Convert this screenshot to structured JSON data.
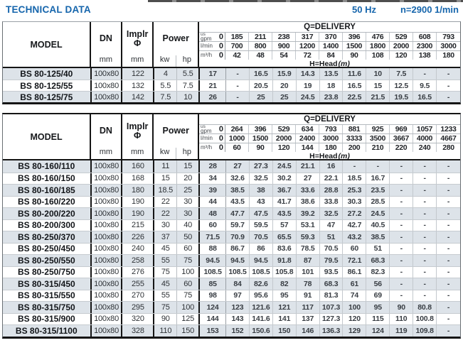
{
  "header": {
    "title": "TECHNICAL DATA",
    "frequency": "50 Hz",
    "speed": "n=2900 1/min"
  },
  "labels": {
    "model": "MODEL",
    "dn": "DN",
    "implr": "Implr",
    "phi": "Φ",
    "power": "Power",
    "mm": "mm",
    "kw": "kw",
    "hp": "hp",
    "q_delivery": "Q=DELIVERY",
    "head_label": "H=Head",
    "head_unit": "(m)",
    "unit_us": "us",
    "unit_gpm": "gpm",
    "unit_lmin": "l/min",
    "unit_m3h": "m³/h"
  },
  "colors": {
    "accent_blue": "#1565ac",
    "row_stripe": "#dde3e9"
  },
  "tables": [
    {
      "q_delivery": {
        "rows": [
          {
            "unit_top": "us",
            "unit": "gpm",
            "zero": "0",
            "values": [
              "185",
              "211",
              "238",
              "317",
              "370",
              "396",
              "476",
              "529",
              "608",
              "793"
            ]
          },
          {
            "unit": "l/min",
            "zero": "0",
            "values": [
              "700",
              "800",
              "900",
              "1200",
              "1400",
              "1500",
              "1800",
              "2000",
              "2300",
              "3000"
            ]
          },
          {
            "unit": "m³/h",
            "zero": "0",
            "values": [
              "42",
              "48",
              "54",
              "72",
              "84",
              "90",
              "108",
              "120",
              "138",
              "180"
            ]
          }
        ]
      },
      "rows": [
        {
          "model": "BS 80-125/40",
          "dn": "100x80",
          "implr": "122",
          "kw": "4",
          "hp": "5.5",
          "head": [
            "17",
            "-",
            "16.5",
            "15.9",
            "14.3",
            "13.5",
            "11.6",
            "10",
            "7.5",
            "-",
            "-"
          ]
        },
        {
          "model": "BS 80-125/55",
          "dn": "100x80",
          "implr": "132",
          "kw": "5.5",
          "hp": "7.5",
          "head": [
            "21",
            "-",
            "20.5",
            "20",
            "19",
            "18",
            "16.5",
            "15",
            "12.5",
            "9.5",
            "-"
          ]
        },
        {
          "model": "BS 80-125/75",
          "dn": "100x80",
          "implr": "142",
          "kw": "7.5",
          "hp": "10",
          "head": [
            "26",
            "-",
            "25",
            "25",
            "24.5",
            "23.8",
            "22.5",
            "21.5",
            "19.5",
            "16.5",
            "-"
          ]
        }
      ]
    },
    {
      "q_delivery": {
        "rows": [
          {
            "unit_top": "us",
            "unit": "gpm",
            "zero": "0",
            "values": [
              "264",
              "396",
              "529",
              "634",
              "793",
              "881",
              "925",
              "969",
              "1057",
              "1233"
            ]
          },
          {
            "unit": "l/min",
            "zero": "0",
            "values": [
              "1000",
              "1500",
              "2000",
              "2400",
              "3000",
              "3333",
              "3500",
              "3667",
              "4000",
              "4667"
            ]
          },
          {
            "unit": "m³/h",
            "zero": "0",
            "values": [
              "60",
              "90",
              "120",
              "144",
              "180",
              "200",
              "210",
              "220",
              "240",
              "280"
            ]
          }
        ]
      },
      "rows": [
        {
          "model": "BS 80-160/110",
          "dn": "100x80",
          "implr": "160",
          "kw": "11",
          "hp": "15",
          "head": [
            "28",
            "27",
            "27.3",
            "24.5",
            "21.1",
            "16",
            "-",
            "-",
            "-",
            "-",
            "-"
          ]
        },
        {
          "model": "BS 80-160/150",
          "dn": "100x80",
          "implr": "168",
          "kw": "15",
          "hp": "20",
          "head": [
            "34",
            "32.6",
            "32.5",
            "30.2",
            "27",
            "22.1",
            "18.5",
            "16.7",
            "-",
            "-",
            "-"
          ]
        },
        {
          "model": "BS 80-160/185",
          "dn": "100x80",
          "implr": "180",
          "kw": "18.5",
          "hp": "25",
          "head": [
            "39",
            "38.5",
            "38",
            "36.7",
            "33.6",
            "28.8",
            "25.3",
            "23.5",
            "-",
            "-",
            "-"
          ]
        },
        {
          "model": "BS 80-160/220",
          "dn": "100x80",
          "implr": "190",
          "kw": "22",
          "hp": "30",
          "head": [
            "44",
            "43.5",
            "43",
            "41.7",
            "38.6",
            "33.8",
            "30.3",
            "28.5",
            "-",
            "-",
            "-"
          ]
        },
        {
          "model": "BS 80-200/220",
          "dn": "100x80",
          "implr": "190",
          "kw": "22",
          "hp": "30",
          "head": [
            "48",
            "47.7",
            "47.5",
            "43.5",
            "39.2",
            "32.5",
            "27.2",
            "24.5",
            "-",
            "-",
            "-"
          ]
        },
        {
          "model": "BS 80-200/300",
          "dn": "100x80",
          "implr": "215",
          "kw": "30",
          "hp": "40",
          "head": [
            "60",
            "59.7",
            "59.5",
            "57",
            "53.1",
            "47",
            "42.7",
            "40.5",
            "-",
            "-",
            "-"
          ]
        },
        {
          "model": "BS 80-250/370",
          "dn": "100x80",
          "implr": "226",
          "kw": "37",
          "hp": "50",
          "head": [
            "71.5",
            "70.9",
            "70.5",
            "65.5",
            "59.3",
            "51",
            "43.2",
            "38.5",
            "-",
            "-",
            "-"
          ]
        },
        {
          "model": "BS 80-250/450",
          "dn": "100x80",
          "implr": "240",
          "kw": "45",
          "hp": "60",
          "head": [
            "88",
            "86.7",
            "86",
            "83.6",
            "78.5",
            "70.5",
            "60",
            "51",
            "-",
            "-",
            "-"
          ]
        },
        {
          "model": "BS 80-250/550",
          "dn": "100x80",
          "implr": "258",
          "kw": "55",
          "hp": "75",
          "head": [
            "94.5",
            "94.5",
            "94.5",
            "91.8",
            "87",
            "79.5",
            "72.1",
            "68.3",
            "-",
            "-",
            "-"
          ]
        },
        {
          "model": "BS 80-250/750",
          "dn": "100x80",
          "implr": "276",
          "kw": "75",
          "hp": "100",
          "head": [
            "108.5",
            "108.5",
            "108.5",
            "105.8",
            "101",
            "93.5",
            "86.1",
            "82.3",
            "-",
            "-",
            "-"
          ]
        },
        {
          "model": "BS 80-315/450",
          "dn": "100x80",
          "implr": "255",
          "kw": "45",
          "hp": "60",
          "head": [
            "85",
            "84",
            "82.6",
            "82",
            "78",
            "68.3",
            "61",
            "56",
            "-",
            "-",
            "-"
          ]
        },
        {
          "model": "BS 80-315/550",
          "dn": "100x80",
          "implr": "270",
          "kw": "55",
          "hp": "75",
          "head": [
            "98",
            "97",
            "95.6",
            "95",
            "91",
            "81.3",
            "74",
            "69",
            "-",
            "-",
            "-"
          ]
        },
        {
          "model": "BS 80-315/750",
          "dn": "100x80",
          "implr": "295",
          "kw": "75",
          "hp": "100",
          "head": [
            "124",
            "123",
            "121.6",
            "121",
            "117",
            "107.3",
            "100",
            "95",
            "90",
            "80.8",
            "-"
          ]
        },
        {
          "model": "BS 80-315/900",
          "dn": "100x80",
          "implr": "320",
          "kw": "90",
          "hp": "125",
          "head": [
            "144",
            "143",
            "141.6",
            "141",
            "137",
            "127.3",
            "120",
            "115",
            "110",
            "100.8",
            "-"
          ]
        },
        {
          "model": "BS 80-315/1100",
          "dn": "100x80",
          "implr": "328",
          "kw": "110",
          "hp": "150",
          "head": [
            "153",
            "152",
            "150.6",
            "150",
            "146",
            "136.3",
            "129",
            "124",
            "119",
            "109.8",
            "-"
          ]
        }
      ]
    }
  ]
}
